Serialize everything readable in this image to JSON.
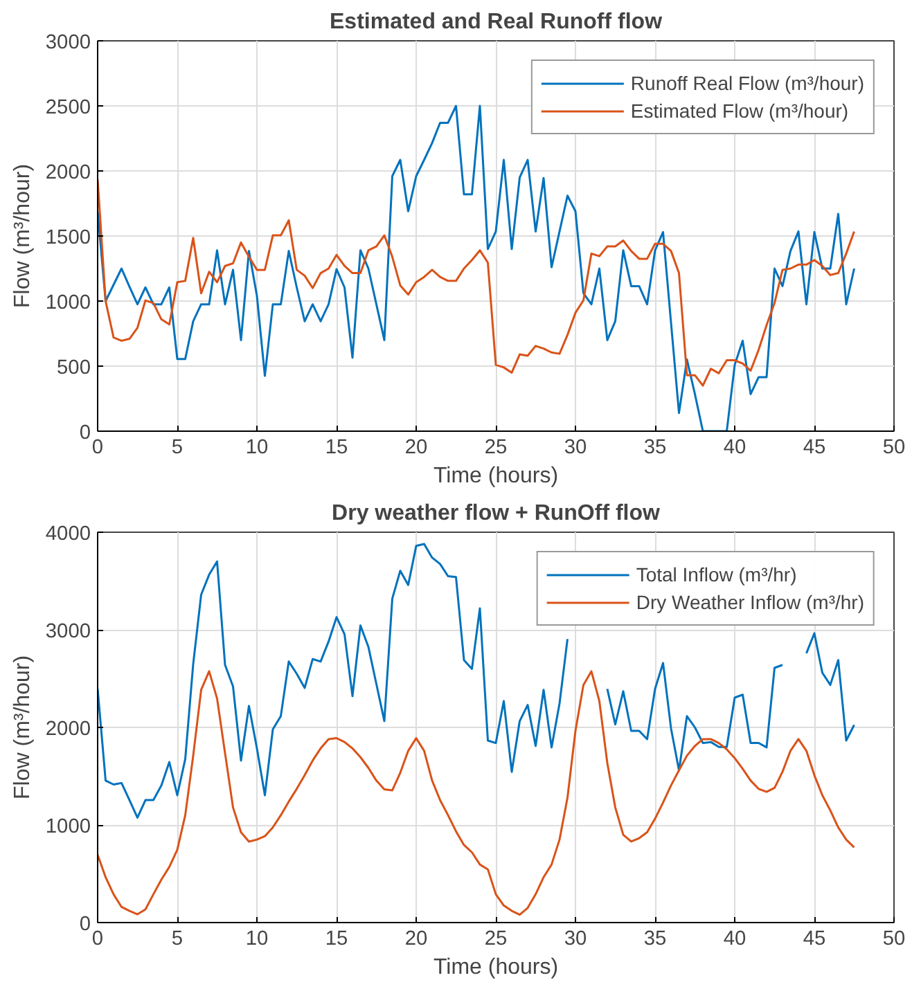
{
  "chart_data": [
    {
      "type": "line",
      "title": "Estimated and Real Runoff flow",
      "xlabel": "Time (hours)",
      "ylabel": "Flow (m³/hour)",
      "x": [
        0,
        0.5,
        1,
        1.5,
        2,
        2.5,
        3,
        3.5,
        4,
        4.5,
        5,
        5.5,
        6,
        6.5,
        7,
        7.5,
        8,
        8.5,
        9,
        9.5,
        10,
        10.5,
        11,
        11.5,
        12,
        12.5,
        13,
        13.5,
        14,
        14.5,
        15,
        15.5,
        16,
        16.5,
        17,
        17.5,
        18,
        18.5,
        19,
        19.5,
        20,
        20.5,
        21,
        21.5,
        22,
        22.5,
        23,
        23.5,
        24,
        24.5,
        25,
        25.5,
        26,
        26.5,
        27,
        27.5,
        28,
        28.5,
        29,
        29.5,
        30,
        30.5,
        31,
        31.5,
        32,
        32.5,
        33,
        33.5,
        34,
        34.5,
        35,
        35.5,
        36,
        36.5,
        37,
        37.5,
        38,
        38.5,
        39,
        39.5,
        40,
        40.5,
        41,
        41.5,
        42,
        42.5,
        43,
        43.5,
        44,
        44.5,
        45,
        45.5,
        46,
        46.5,
        47,
        47.5
      ],
      "series": [
        {
          "name": "Runoff Real Flow (m³/hour)",
          "color": "#0072bd",
          "values": [
            1690,
            1000,
            1125,
            1250,
            1110,
            975,
            1105,
            975,
            975,
            1105,
            555,
            555,
            845,
            975,
            975,
            1390,
            975,
            1240,
            700,
            1385,
            1040,
            425,
            975,
            975,
            1385,
            1105,
            845,
            975,
            845,
            975,
            1245,
            1105,
            565,
            1390,
            1250,
            975,
            700,
            1960,
            2085,
            1690,
            1960,
            2085,
            2215,
            2370,
            2370,
            2500,
            1820,
            1820,
            2500,
            1400,
            1535,
            2085,
            1400,
            1950,
            2085,
            1535,
            1945,
            1260,
            1535,
            1810,
            1690,
            1060,
            975,
            1250,
            700,
            845,
            1390,
            1115,
            1115,
            975,
            1390,
            1530,
            835,
            140,
            550,
            285,
            0,
            0,
            0,
            0,
            510,
            695,
            285,
            415,
            415,
            1250,
            1115,
            1385,
            1535,
            975,
            1530,
            1250,
            1250,
            1670,
            975,
            1250
          ]
        },
        {
          "name": "Estimated Flow (m³/hour)",
          "color": "#d95319",
          "values": [
            1935,
            1000,
            720,
            695,
            710,
            795,
            1005,
            985,
            860,
            820,
            1145,
            1155,
            1485,
            1060,
            1225,
            1145,
            1270,
            1290,
            1450,
            1340,
            1240,
            1240,
            1505,
            1505,
            1620,
            1240,
            1195,
            1100,
            1215,
            1250,
            1355,
            1270,
            1215,
            1215,
            1390,
            1420,
            1505,
            1340,
            1120,
            1050,
            1145,
            1185,
            1240,
            1185,
            1155,
            1155,
            1250,
            1315,
            1390,
            1295,
            510,
            490,
            450,
            590,
            580,
            655,
            635,
            605,
            595,
            740,
            910,
            1005,
            1365,
            1345,
            1420,
            1420,
            1465,
            1385,
            1325,
            1325,
            1440,
            1440,
            1385,
            1215,
            430,
            430,
            350,
            480,
            445,
            545,
            545,
            520,
            465,
            625,
            815,
            985,
            1240,
            1250,
            1280,
            1280,
            1315,
            1270,
            1200,
            1215,
            1365,
            1535
          ]
        }
      ],
      "xlim": [
        0,
        50
      ],
      "xticks": [
        0,
        5,
        10,
        15,
        20,
        25,
        30,
        35,
        40,
        45,
        50
      ],
      "ylim": [
        0,
        3000
      ],
      "yticks": [
        0,
        500,
        1000,
        1500,
        2000,
        2500,
        3000
      ],
      "grid": true,
      "legend": "top right",
      "line_style": "solid"
    },
    {
      "type": "line",
      "title": "Dry weather flow + RunOff flow",
      "xlabel": "Time (hours)",
      "ylabel": "Flow (m³/hour)",
      "x": [
        0,
        0.5,
        1,
        1.5,
        2,
        2.5,
        3,
        3.5,
        4,
        4.5,
        5,
        5.5,
        6,
        6.5,
        7,
        7.5,
        8,
        8.5,
        9,
        9.5,
        10,
        10.5,
        11,
        11.5,
        12,
        12.5,
        13,
        13.5,
        14,
        14.5,
        15,
        15.5,
        16,
        16.5,
        17,
        17.5,
        18,
        18.5,
        19,
        19.5,
        20,
        20.5,
        21,
        21.5,
        22,
        22.5,
        23,
        23.5,
        24,
        24.5,
        25,
        25.5,
        26,
        26.5,
        27,
        27.5,
        28,
        28.5,
        29,
        29.5,
        30,
        30.5,
        31,
        31.5,
        32,
        32.5,
        33,
        33.5,
        34,
        34.5,
        35,
        35.5,
        36,
        36.5,
        37,
        37.5,
        38,
        38.5,
        39,
        39.5,
        40,
        40.5,
        41,
        41.5,
        42,
        42.5,
        43,
        43.5,
        44,
        44.5,
        45,
        45.5,
        46,
        46.5,
        47,
        47.5
      ],
      "series": [
        {
          "name": "Total Inflow (m³/hr)",
          "color": "#0072bd",
          "values": [
            2395,
            1455,
            1415,
            1430,
            1255,
            1075,
            1255,
            1255,
            1405,
            1645,
            1305,
            1675,
            2650,
            3360,
            3565,
            3700,
            2640,
            2420,
            1660,
            2220,
            1785,
            1305,
            1980,
            2115,
            2675,
            2550,
            2405,
            2700,
            2675,
            2880,
            3130,
            2955,
            2320,
            3045,
            2825,
            2445,
            2065,
            3320,
            3605,
            3460,
            3860,
            3880,
            3740,
            3675,
            3550,
            3540,
            2690,
            2600,
            3220,
            1865,
            1840,
            2270,
            1545,
            2065,
            2230,
            1810,
            2385,
            1795,
            2245,
            2905,
            null,
            null,
            null,
            null,
            2395,
            2030,
            2370,
            1965,
            1965,
            1880,
            2395,
            2660,
            1990,
            1560,
            2115,
            2000,
            1840,
            1850,
            1800,
            1800,
            2305,
            2335,
            1840,
            1840,
            1795,
            2610,
            2640,
            null,
            null,
            2760,
            2965,
            2560,
            2435,
            2690,
            1865,
            2025
          ]
        },
        {
          "name": "Dry Weather Inflow (m³/hr)",
          "color": "#d95319",
          "values": [
            695,
            465,
            290,
            160,
            120,
            85,
            135,
            290,
            440,
            570,
            745,
            1100,
            1710,
            2385,
            2575,
            2295,
            1735,
            1180,
            925,
            830,
            850,
            885,
            975,
            1100,
            1240,
            1370,
            1510,
            1660,
            1785,
            1880,
            1890,
            1850,
            1785,
            1695,
            1585,
            1455,
            1365,
            1355,
            1535,
            1760,
            1890,
            1760,
            1455,
            1255,
            1100,
            935,
            795,
            720,
            595,
            545,
            290,
            175,
            120,
            80,
            150,
            290,
            465,
            595,
            850,
            1280,
            1965,
            2435,
            2575,
            2270,
            1635,
            1180,
            900,
            830,
            865,
            925,
            1065,
            1230,
            1405,
            1560,
            1710,
            1810,
            1880,
            1880,
            1840,
            1775,
            1685,
            1575,
            1455,
            1370,
            1340,
            1380,
            1545,
            1760,
            1880,
            1760,
            1510,
            1305,
            1150,
            975,
            850,
            770
          ]
        }
      ],
      "xlim": [
        0,
        50
      ],
      "xticks": [
        0,
        5,
        10,
        15,
        20,
        25,
        30,
        35,
        40,
        45,
        50
      ],
      "ylim": [
        0,
        4000
      ],
      "yticks": [
        0,
        1000,
        2000,
        3000,
        4000
      ],
      "grid": true,
      "legend": "top right",
      "line_style": "solid"
    }
  ]
}
